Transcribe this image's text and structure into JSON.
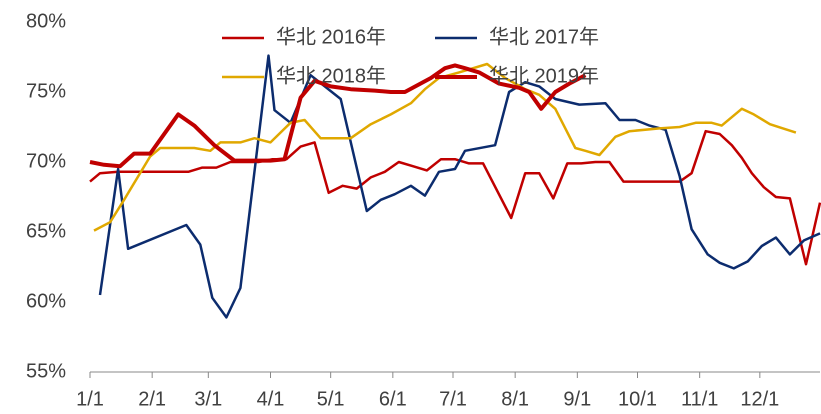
{
  "chart_data": {
    "type": "line",
    "xlim": [
      0,
      364
    ],
    "xticks": [
      {
        "value": 0,
        "label": "1/1"
      },
      {
        "value": 31,
        "label": "2/1"
      },
      {
        "value": 59,
        "label": "3/1"
      },
      {
        "value": 90,
        "label": "4/1"
      },
      {
        "value": 120,
        "label": "5/1"
      },
      {
        "value": 151,
        "label": "6/1"
      },
      {
        "value": 181,
        "label": "7/1"
      },
      {
        "value": 212,
        "label": "8/1"
      },
      {
        "value": 243,
        "label": "9/1"
      },
      {
        "value": 273,
        "label": "10/1"
      },
      {
        "value": 304,
        "label": "11/1"
      },
      {
        "value": 334,
        "label": "12/1"
      }
    ],
    "ylim": [
      55,
      80
    ],
    "yticks": [
      {
        "value": 55,
        "label": "55%"
      },
      {
        "value": 60,
        "label": "60%"
      },
      {
        "value": 65,
        "label": "65%"
      },
      {
        "value": 70,
        "label": "70%"
      },
      {
        "value": 75,
        "label": "75%"
      },
      {
        "value": 80,
        "label": "80%"
      }
    ],
    "grid": false,
    "legend": "top",
    "series": [
      {
        "name": "华北 2016年",
        "color": "#c00000",
        "line_width": 2.5,
        "x": [
          0,
          5,
          14,
          28,
          42,
          49,
          56,
          63,
          70,
          77,
          84,
          91,
          98,
          105,
          112,
          119,
          126,
          133,
          140,
          147,
          154,
          161,
          168,
          175,
          182,
          189,
          196,
          210,
          217,
          224,
          231,
          238,
          245,
          252,
          259,
          266,
          273,
          280,
          287,
          294,
          300,
          307,
          314,
          320,
          325,
          330,
          336,
          342,
          349,
          357,
          364
        ],
        "values": [
          68.6,
          69.2,
          69.3,
          69.3,
          69.3,
          69.3,
          69.6,
          69.6,
          70.0,
          70.0,
          70.0,
          70.2,
          70.2,
          71.1,
          71.4,
          67.8,
          68.3,
          68.1,
          68.9,
          69.3,
          70.0,
          69.7,
          69.4,
          70.2,
          70.2,
          69.9,
          69.9,
          66.0,
          69.2,
          69.2,
          67.4,
          69.9,
          69.9,
          70.0,
          70.0,
          68.6,
          68.6,
          68.6,
          68.6,
          68.6,
          69.2,
          72.2,
          72.0,
          71.2,
          70.3,
          69.2,
          68.2,
          67.5,
          67.4,
          62.7,
          67.1
        ]
      },
      {
        "name": "华北 2017年",
        "color": "#0c2c6e",
        "line_width": 2.5,
        "x": [
          5,
          14,
          19,
          48,
          55,
          61,
          68,
          75,
          89,
          92,
          100,
          110,
          125,
          138,
          145,
          152,
          160,
          167,
          174,
          182,
          187,
          202,
          209,
          217,
          224,
          232,
          244,
          257,
          264,
          272,
          279,
          287,
          294,
          300,
          308,
          314,
          321,
          328,
          335,
          342,
          349,
          356,
          364
        ],
        "values": [
          60.5,
          69.5,
          63.8,
          65.5,
          64.1,
          60.3,
          58.9,
          61.0,
          77.6,
          73.7,
          72.8,
          76.2,
          74.5,
          66.5,
          67.3,
          67.7,
          68.3,
          67.6,
          69.3,
          69.5,
          70.8,
          71.2,
          75.0,
          75.7,
          75.4,
          74.5,
          74.1,
          74.2,
          73.0,
          73.0,
          72.6,
          72.3,
          69.0,
          65.2,
          63.4,
          62.8,
          62.4,
          62.9,
          64.0,
          64.6,
          63.4,
          64.4,
          64.9
        ]
      },
      {
        "name": "华北 2018年",
        "color": "#e0a800",
        "line_width": 2.5,
        "x": [
          2,
          10,
          17,
          30,
          35,
          52,
          60,
          65,
          75,
          82,
          90,
          100,
          107,
          115,
          130,
          140,
          150,
          160,
          167,
          174,
          184,
          198,
          207,
          217,
          224,
          232,
          242,
          247,
          254,
          262,
          269,
          284,
          294,
          302,
          310,
          315,
          325,
          331,
          339,
          352
        ],
        "values": [
          65.1,
          65.7,
          67.3,
          70.4,
          71.0,
          71.0,
          70.8,
          71.4,
          71.4,
          71.7,
          71.4,
          72.8,
          73.0,
          71.7,
          71.7,
          72.7,
          73.4,
          74.2,
          75.2,
          76.0,
          76.4,
          77.0,
          76.0,
          75.2,
          74.8,
          73.8,
          71.0,
          70.8,
          70.5,
          71.8,
          72.2,
          72.4,
          72.5,
          72.8,
          72.8,
          72.6,
          73.8,
          73.4,
          72.7,
          72.1
        ]
      },
      {
        "name": "华北 2019年",
        "color": "#c00000",
        "line_width": 4,
        "x": [
          0,
          7,
          15,
          22,
          30,
          44,
          52,
          62,
          72,
          90,
          97,
          105,
          112,
          120,
          130,
          142,
          150,
          157,
          170,
          177,
          182,
          187,
          194,
          204,
          214,
          219,
          225,
          232,
          239,
          247
        ],
        "values": [
          70.0,
          69.8,
          69.7,
          70.6,
          70.6,
          73.4,
          72.6,
          71.2,
          70.1,
          70.1,
          70.2,
          74.6,
          75.8,
          75.4,
          75.2,
          75.1,
          75.0,
          75.0,
          76.0,
          76.7,
          76.9,
          76.7,
          76.4,
          75.6,
          75.3,
          75.0,
          73.8,
          75.0,
          75.6,
          76.2
        ]
      }
    ]
  }
}
